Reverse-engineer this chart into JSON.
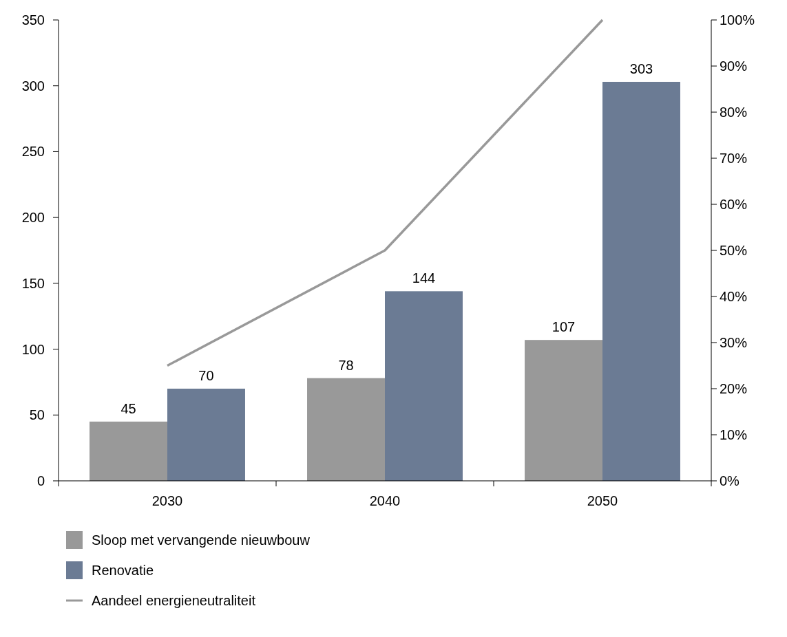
{
  "chart_data": {
    "type": "bar",
    "categories": [
      "2030",
      "2040",
      "2050"
    ],
    "series": [
      {
        "name": "Sloop met vervangende nieuwbouw",
        "color": "#999999",
        "values": [
          45,
          78,
          107
        ],
        "value_labels": [
          "45",
          "78",
          "107"
        ]
      },
      {
        "name": "Renovatie",
        "color": "#6b7b94",
        "values": [
          70,
          144,
          303
        ],
        "value_labels": [
          "70",
          "144",
          "303"
        ]
      },
      {
        "name": "Aandeel energieneutraliteit",
        "type": "line",
        "axis": "y2",
        "color": "#999999",
        "values": [
          25,
          50,
          100
        ]
      }
    ],
    "ylim": [
      0,
      350
    ],
    "yticks": [
      0,
      50,
      100,
      150,
      200,
      250,
      300,
      350
    ],
    "y2lim": [
      0,
      100
    ],
    "y2ticks": [
      {
        "value": 0,
        "label": "0%"
      },
      {
        "value": 10,
        "label": "10%"
      },
      {
        "value": 20,
        "label": "20%"
      },
      {
        "value": 30,
        "label": "30%"
      },
      {
        "value": 40,
        "label": "40%"
      },
      {
        "value": 50,
        "label": "50%"
      },
      {
        "value": 60,
        "label": "60%"
      },
      {
        "value": 70,
        "label": "70%"
      },
      {
        "value": 80,
        "label": "80%"
      },
      {
        "value": 90,
        "label": "90%"
      },
      {
        "value": 100,
        "label": "100%"
      }
    ],
    "grid": false,
    "legend": "bottom left",
    "marker": "none",
    "line_style": "solid"
  }
}
